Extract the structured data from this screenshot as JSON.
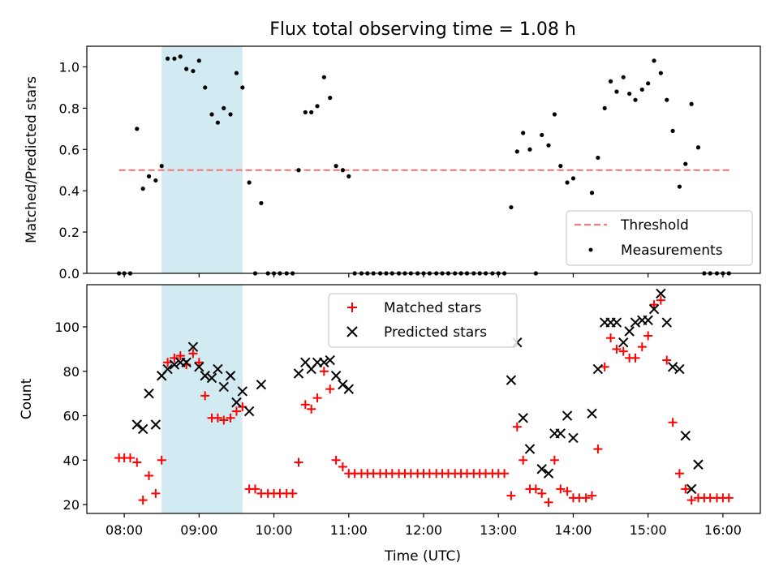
{
  "chart_data": [
    {
      "type": "scatter",
      "title": "Flux total observing time = 1.08 h",
      "xlabel": "",
      "ylabel": "Matched/Predicted stars",
      "xlim_hours": [
        7.5,
        16.5
      ],
      "ylim": [
        0,
        1.1
      ],
      "yticks": [
        0.0,
        0.2,
        0.4,
        0.6,
        0.8,
        1.0
      ],
      "ytick_labels": [
        "0.0",
        "0.2",
        "0.4",
        "0.6",
        "0.8",
        "1.0"
      ],
      "highlight_span_hours": [
        8.5,
        9.58
      ],
      "highlight_color": "#add8e6",
      "threshold": {
        "label": "Threshold",
        "value": 0.5,
        "x_range_hours": [
          7.93,
          16.1
        ],
        "color": "#f08080"
      },
      "legend": [
        "Threshold",
        "Measurements"
      ],
      "series": [
        {
          "name": "Measurements",
          "color": "#000000",
          "points": [
            [
              7.93,
              0
            ],
            [
              8.0,
              0
            ],
            [
              8.08,
              0
            ],
            [
              8.17,
              0.7
            ],
            [
              8.25,
              0.41
            ],
            [
              8.33,
              0.47
            ],
            [
              8.42,
              0.45
            ],
            [
              8.5,
              0.52
            ],
            [
              8.58,
              1.04
            ],
            [
              8.67,
              1.04
            ],
            [
              8.75,
              1.05
            ],
            [
              8.83,
              0.99
            ],
            [
              8.92,
              0.98
            ],
            [
              9.0,
              1.03
            ],
            [
              9.08,
              0.9
            ],
            [
              9.17,
              0.77
            ],
            [
              9.25,
              0.73
            ],
            [
              9.33,
              0.8
            ],
            [
              9.42,
              0.77
            ],
            [
              9.5,
              0.97
            ],
            [
              9.58,
              0.9
            ],
            [
              9.67,
              0.44
            ],
            [
              9.75,
              0
            ],
            [
              9.83,
              0.34
            ],
            [
              9.92,
              0
            ],
            [
              10.0,
              0
            ],
            [
              10.08,
              0
            ],
            [
              10.17,
              0
            ],
            [
              10.25,
              0
            ],
            [
              10.33,
              0.5
            ],
            [
              10.42,
              0.78
            ],
            [
              10.5,
              0.78
            ],
            [
              10.58,
              0.81
            ],
            [
              10.67,
              0.95
            ],
            [
              10.75,
              0.85
            ],
            [
              10.83,
              0.52
            ],
            [
              10.92,
              0.5
            ],
            [
              11.0,
              0.47
            ],
            [
              11.08,
              0
            ],
            [
              11.17,
              0
            ],
            [
              11.25,
              0
            ],
            [
              11.33,
              0
            ],
            [
              11.42,
              0
            ],
            [
              11.5,
              0
            ],
            [
              11.58,
              0
            ],
            [
              11.67,
              0
            ],
            [
              11.75,
              0
            ],
            [
              11.83,
              0
            ],
            [
              11.92,
              0
            ],
            [
              12.0,
              0
            ],
            [
              12.08,
              0
            ],
            [
              12.17,
              0
            ],
            [
              12.25,
              0
            ],
            [
              12.33,
              0
            ],
            [
              12.42,
              0
            ],
            [
              12.5,
              0
            ],
            [
              12.58,
              0
            ],
            [
              12.67,
              0
            ],
            [
              12.75,
              0
            ],
            [
              12.83,
              0
            ],
            [
              12.92,
              0
            ],
            [
              13.0,
              0
            ],
            [
              13.08,
              0
            ],
            [
              13.17,
              0.32
            ],
            [
              13.25,
              0.59
            ],
            [
              13.33,
              0.68
            ],
            [
              13.42,
              0.6
            ],
            [
              13.5,
              0
            ],
            [
              13.58,
              0.67
            ],
            [
              13.67,
              0.62
            ],
            [
              13.75,
              0.77
            ],
            [
              13.83,
              0.52
            ],
            [
              13.92,
              0.44
            ],
            [
              14.0,
              0.46
            ],
            [
              14.25,
              0.39
            ],
            [
              14.33,
              0.56
            ],
            [
              14.42,
              0.8
            ],
            [
              14.5,
              0.93
            ],
            [
              14.58,
              0.88
            ],
            [
              14.67,
              0.95
            ],
            [
              14.75,
              0.87
            ],
            [
              14.83,
              0.84
            ],
            [
              14.92,
              0.89
            ],
            [
              15.0,
              0.92
            ],
            [
              15.08,
              1.03
            ],
            [
              15.17,
              0.97
            ],
            [
              15.25,
              0.84
            ],
            [
              15.33,
              0.69
            ],
            [
              15.42,
              0.42
            ],
            [
              15.5,
              0.53
            ],
            [
              15.58,
              0.82
            ],
            [
              15.67,
              0.61
            ],
            [
              15.75,
              0
            ],
            [
              15.83,
              0
            ],
            [
              15.92,
              0
            ],
            [
              16.0,
              0
            ],
            [
              16.08,
              0
            ]
          ]
        }
      ]
    },
    {
      "type": "scatter",
      "title": "",
      "xlabel": "Time (UTC)",
      "ylabel": "Count",
      "xlim_hours": [
        7.5,
        16.5
      ],
      "ylim": [
        16,
        119
      ],
      "yticks": [
        20,
        40,
        60,
        80,
        100
      ],
      "ytick_labels": [
        "20",
        "40",
        "60",
        "80",
        "100"
      ],
      "xticks_hours": [
        8,
        9,
        10,
        11,
        12,
        13,
        14,
        15,
        16
      ],
      "xtick_labels": [
        "08:00",
        "09:00",
        "10:00",
        "11:00",
        "12:00",
        "13:00",
        "14:00",
        "15:00",
        "16:00"
      ],
      "highlight_span_hours": [
        8.5,
        9.58
      ],
      "highlight_color": "#add8e6",
      "legend": [
        "Matched stars",
        "Predicted stars"
      ],
      "series": [
        {
          "name": "Matched stars",
          "marker": "+",
          "color": "#ff0000",
          "points": [
            [
              7.93,
              41
            ],
            [
              8.0,
              41
            ],
            [
              8.08,
              41
            ],
            [
              8.17,
              39
            ],
            [
              8.25,
              22
            ],
            [
              8.33,
              33
            ],
            [
              8.42,
              25
            ],
            [
              8.5,
              40
            ],
            [
              8.58,
              84
            ],
            [
              8.67,
              86
            ],
            [
              8.75,
              87
            ],
            [
              8.83,
              83
            ],
            [
              8.92,
              88
            ],
            [
              9.0,
              84
            ],
            [
              9.08,
              69
            ],
            [
              9.17,
              59
            ],
            [
              9.25,
              59
            ],
            [
              9.33,
              58
            ],
            [
              9.42,
              59
            ],
            [
              9.5,
              62
            ],
            [
              9.58,
              64
            ],
            [
              9.67,
              27
            ],
            [
              9.75,
              27
            ],
            [
              9.83,
              25
            ],
            [
              9.92,
              25
            ],
            [
              10.0,
              25
            ],
            [
              10.08,
              25
            ],
            [
              10.17,
              25
            ],
            [
              10.25,
              25
            ],
            [
              10.33,
              39
            ],
            [
              10.42,
              65
            ],
            [
              10.5,
              63
            ],
            [
              10.58,
              68
            ],
            [
              10.67,
              80
            ],
            [
              10.75,
              72
            ],
            [
              10.83,
              40
            ],
            [
              10.92,
              37
            ],
            [
              11.0,
              34
            ],
            [
              11.08,
              34
            ],
            [
              11.17,
              34
            ],
            [
              11.25,
              34
            ],
            [
              11.33,
              34
            ],
            [
              11.42,
              34
            ],
            [
              11.5,
              34
            ],
            [
              11.58,
              34
            ],
            [
              11.67,
              34
            ],
            [
              11.75,
              34
            ],
            [
              11.83,
              34
            ],
            [
              11.92,
              34
            ],
            [
              12.0,
              34
            ],
            [
              12.08,
              34
            ],
            [
              12.17,
              34
            ],
            [
              12.25,
              34
            ],
            [
              12.33,
              34
            ],
            [
              12.42,
              34
            ],
            [
              12.5,
              34
            ],
            [
              12.58,
              34
            ],
            [
              12.67,
              34
            ],
            [
              12.75,
              34
            ],
            [
              12.83,
              34
            ],
            [
              12.92,
              34
            ],
            [
              13.0,
              34
            ],
            [
              13.08,
              34
            ],
            [
              13.17,
              24
            ],
            [
              13.25,
              55
            ],
            [
              13.33,
              40
            ],
            [
              13.42,
              27
            ],
            [
              13.5,
              27
            ],
            [
              13.58,
              25
            ],
            [
              13.67,
              21
            ],
            [
              13.75,
              40
            ],
            [
              13.83,
              27
            ],
            [
              13.92,
              26
            ],
            [
              14.0,
              23
            ],
            [
              14.08,
              23
            ],
            [
              14.17,
              23
            ],
            [
              14.25,
              24
            ],
            [
              14.33,
              45
            ],
            [
              14.42,
              82
            ],
            [
              14.5,
              95
            ],
            [
              14.58,
              90
            ],
            [
              14.67,
              89
            ],
            [
              14.75,
              86
            ],
            [
              14.83,
              86
            ],
            [
              14.92,
              91
            ],
            [
              15.0,
              96
            ],
            [
              15.08,
              110
            ],
            [
              15.17,
              112
            ],
            [
              15.25,
              85
            ],
            [
              15.33,
              57
            ],
            [
              15.42,
              34
            ],
            [
              15.5,
              27
            ],
            [
              15.58,
              22
            ],
            [
              15.67,
              23
            ],
            [
              15.75,
              23
            ],
            [
              15.83,
              23
            ],
            [
              15.92,
              23
            ],
            [
              16.0,
              23
            ],
            [
              16.08,
              23
            ]
          ]
        },
        {
          "name": "Predicted stars",
          "marker": "x",
          "color": "#000000",
          "points": [
            [
              8.17,
              56
            ],
            [
              8.25,
              54
            ],
            [
              8.33,
              70
            ],
            [
              8.42,
              56
            ],
            [
              8.5,
              78
            ],
            [
              8.58,
              81
            ],
            [
              8.67,
              83
            ],
            [
              8.75,
              84
            ],
            [
              8.83,
              84
            ],
            [
              8.92,
              91
            ],
            [
              9.0,
              82
            ],
            [
              9.08,
              78
            ],
            [
              9.17,
              77
            ],
            [
              9.25,
              81
            ],
            [
              9.33,
              73
            ],
            [
              9.42,
              78
            ],
            [
              9.5,
              66
            ],
            [
              9.58,
              71
            ],
            [
              9.67,
              62
            ],
            [
              9.83,
              74
            ],
            [
              10.33,
              79
            ],
            [
              10.42,
              84
            ],
            [
              10.5,
              81
            ],
            [
              10.58,
              84
            ],
            [
              10.67,
              84
            ],
            [
              10.75,
              85
            ],
            [
              10.83,
              78
            ],
            [
              10.92,
              74
            ],
            [
              11.0,
              72
            ],
            [
              13.17,
              76
            ],
            [
              13.25,
              93
            ],
            [
              13.33,
              59
            ],
            [
              13.42,
              45
            ],
            [
              13.58,
              36
            ],
            [
              13.67,
              34
            ],
            [
              13.75,
              52
            ],
            [
              13.83,
              52
            ],
            [
              13.92,
              60
            ],
            [
              14.0,
              50
            ],
            [
              14.25,
              61
            ],
            [
              14.33,
              81
            ],
            [
              14.42,
              102
            ],
            [
              14.5,
              102
            ],
            [
              14.58,
              102
            ],
            [
              14.67,
              93
            ],
            [
              14.75,
              98
            ],
            [
              14.83,
              102
            ],
            [
              14.92,
              103
            ],
            [
              15.0,
              103
            ],
            [
              15.08,
              108
            ],
            [
              15.17,
              115
            ],
            [
              15.25,
              102
            ],
            [
              15.33,
              82
            ],
            [
              15.42,
              81
            ],
            [
              15.5,
              51
            ],
            [
              15.58,
              27
            ],
            [
              15.67,
              38
            ]
          ]
        }
      ]
    }
  ]
}
